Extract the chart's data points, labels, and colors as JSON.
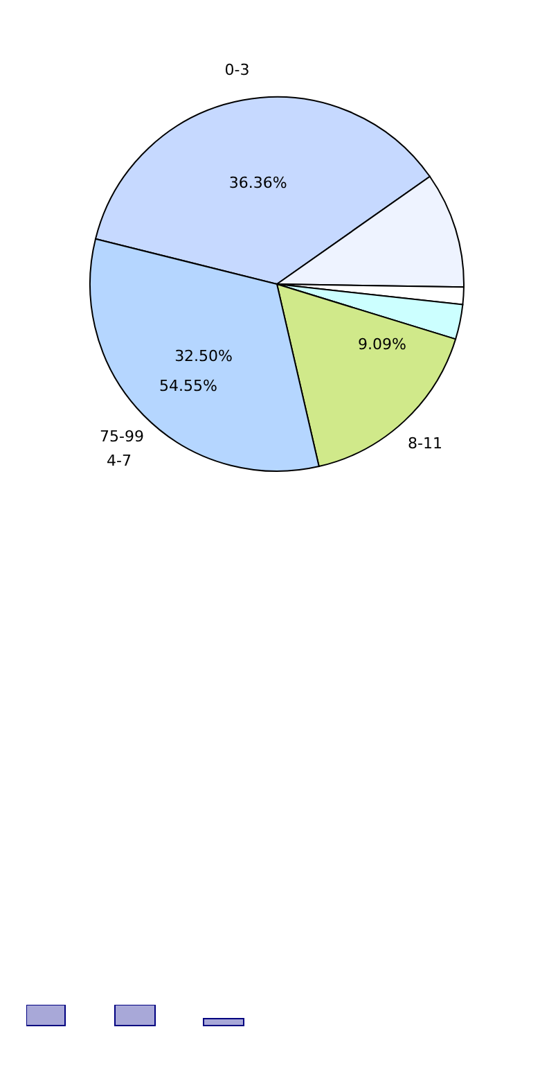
{
  "chart_data": {
    "type": "pie",
    "categories": [
      "0-3",
      null,
      null,
      null,
      "8-11",
      "75-99"
    ],
    "values": [
      36.36,
      10,
      1.5,
      3,
      16.64,
      32.5
    ],
    "colors": [
      "#c6d9ff",
      "#eef3ff",
      "#ffffff",
      "#ccffff",
      "#d0e98a",
      "#b5d6ff"
    ],
    "value_labels": [
      "36.36%",
      null,
      null,
      null,
      null,
      "32.50%"
    ],
    "annotations": [
      "9.09%",
      "54.55%",
      "4-7"
    ]
  }
}
